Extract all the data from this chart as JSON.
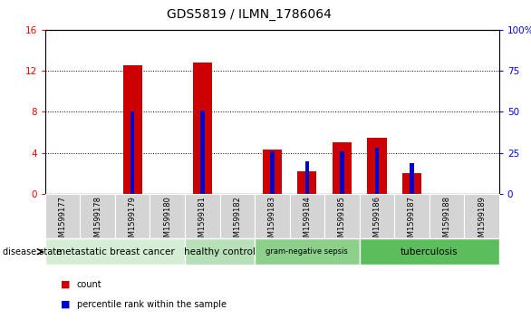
{
  "title": "GDS5819 / ILMN_1786064",
  "samples": [
    "GSM1599177",
    "GSM1599178",
    "GSM1599179",
    "GSM1599180",
    "GSM1599181",
    "GSM1599182",
    "GSM1599183",
    "GSM1599184",
    "GSM1599185",
    "GSM1599186",
    "GSM1599187",
    "GSM1599188",
    "GSM1599189"
  ],
  "count_values": [
    0,
    0,
    12.5,
    0,
    12.8,
    0,
    4.3,
    2.2,
    5.0,
    5.5,
    2.0,
    0,
    0
  ],
  "percentile_values": [
    0,
    0,
    50,
    0,
    51,
    0,
    26,
    20,
    26,
    28,
    19,
    0,
    0
  ],
  "ylim_left": [
    0,
    16
  ],
  "ylim_right": [
    0,
    100
  ],
  "yticks_left": [
    0,
    4,
    8,
    12,
    16
  ],
  "yticks_right": [
    0,
    25,
    50,
    75,
    100
  ],
  "disease_groups": [
    {
      "label": "metastatic breast cancer",
      "start": 0,
      "end": 4,
      "color": "#d4edd4"
    },
    {
      "label": "healthy control",
      "start": 4,
      "end": 6,
      "color": "#b8e0b8"
    },
    {
      "label": "gram-negative sepsis",
      "start": 6,
      "end": 9,
      "color": "#8cd08c"
    },
    {
      "label": "tuberculosis",
      "start": 9,
      "end": 13,
      "color": "#5cbd5c"
    }
  ],
  "bar_color": "#cc0000",
  "percentile_color": "#0000cc",
  "sample_bg_color": "#d4d4d4",
  "legend_count_label": "count",
  "legend_percentile_label": "percentile rank within the sample",
  "disease_state_label": "disease state"
}
